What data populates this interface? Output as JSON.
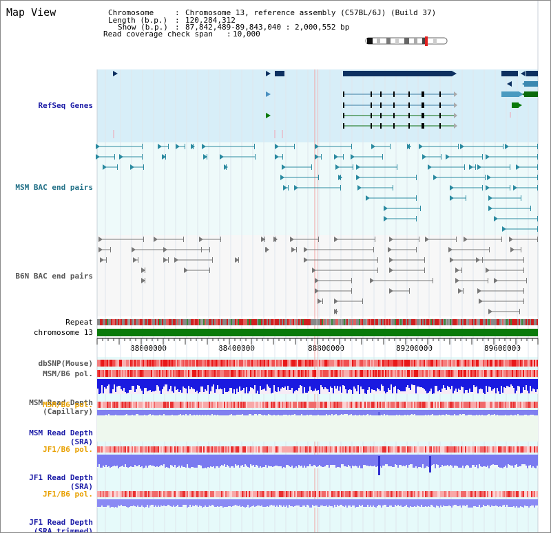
{
  "page": {
    "title": "Map View"
  },
  "info": {
    "chromosome_key": "Chromosome",
    "chromosome_val": "Chromosome 13, reference assembly (C57BL/6J) (Build 37)",
    "length_key": "Length (b.p.)",
    "length_val": "120,284,312",
    "show_key": "Show (b.p.)",
    "show_val": "87,842,489-89,843,040 : 2,000,552 bp",
    "span_key": "Read coverage check span",
    "span_val": "10,000"
  },
  "tracks": {
    "refseq": "RefSeq Genes",
    "msm_bac": "MSM BAC end pairs",
    "b6n_bac": "B6N BAC end pairs",
    "repeat": "Repeat",
    "chromosome": "chromosome 13",
    "dbsnp": "dbSNP(Mouse)",
    "msm_b6_pol_1": "MSM/B6 pol.",
    "msm_read_depth_cap_1": "MSM Read Depth",
    "msm_read_depth_cap_2": "(Capillary)",
    "msm_b6_pol_2": "MSM/B6 pol.",
    "msm_read_depth_sra_1": "MSM Read Depth",
    "msm_read_depth_sra_2": "(SRA)",
    "jf1_b6_pol_1": "JF1/B6 pol.",
    "jf1_read_depth_sra_1": "JF1 Read Depth",
    "jf1_read_depth_sra_2": "(SRA)",
    "jf1_b6_pol_2": "JF1/B6 pol.",
    "jf1_read_depth_trim_1": "JF1 Read Depth",
    "jf1_read_depth_trim_2": "(SRA trimmed)"
  },
  "axis": {
    "ticks": [
      "88000000",
      "88400000",
      "88800000",
      "89200000",
      "89600000"
    ]
  },
  "colors": {
    "refseq_bg": "#d7eef8",
    "msm_bac_bg": "#eefafa",
    "b6n_bac_bg": "#f7f7f7",
    "chromosome_bar": "#0a7a0a",
    "lower_bg": "#e5fafa",
    "read_depth_blue": "#1a1ae0",
    "pol_red": "#e83030",
    "gene_navy": "#0d3060"
  }
}
